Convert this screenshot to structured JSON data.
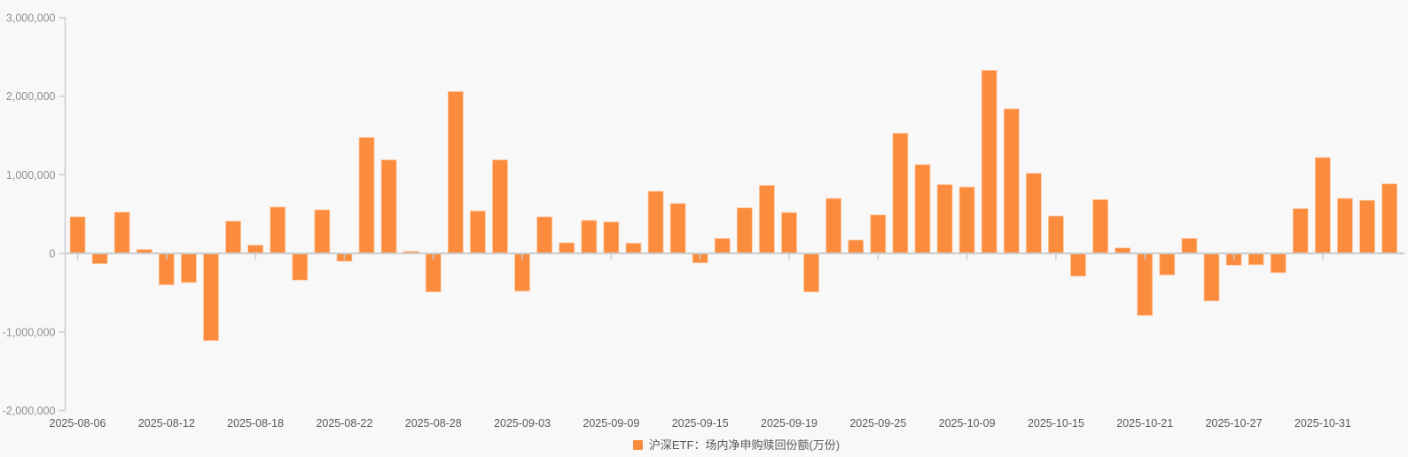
{
  "chart": {
    "background_color": "#f8f8f8",
    "bar_color": "#fb8b3d",
    "bar_stroke_color": "#fec9a2",
    "axis_line_color": "#cccccc",
    "zero_line_color": "#cccccc",
    "tick_color": "#cccccc",
    "y_label_color": "#8f8f8f",
    "x_label_color": "#595959",
    "legend": {
      "label": "沪深ETF：场内净申购赎回份额(万份)",
      "text_color": "#595959"
    }
  },
  "chart_data": {
    "type": "bar",
    "title": "",
    "xlabel": "",
    "ylabel": "",
    "series_name": "沪深ETF：场内净申购赎回份额(万份)",
    "legend_position": "bottom-center",
    "grid": false,
    "ylim": [
      -2000000,
      3000000
    ],
    "y_ticks": [
      3000000,
      2000000,
      1000000,
      0,
      -1000000,
      -2000000
    ],
    "y_tick_labels": [
      "3,000,000",
      "2,000,000",
      "1,000,000",
      "0",
      "-1,000,000",
      "-2,000,000"
    ],
    "x_tick_indices": [
      0,
      4,
      8,
      12,
      16,
      20,
      24,
      28,
      32,
      36,
      40,
      44,
      48,
      52,
      56
    ],
    "x_tick_labels": [
      "2025-08-06",
      "2025-08-12",
      "2025-08-18",
      "2025-08-22",
      "2025-08-28",
      "2025-09-03",
      "2025-09-09",
      "2025-09-15",
      "2025-09-19",
      "2025-09-25",
      "2025-10-09",
      "2025-10-15",
      "2025-10-21",
      "2025-10-27",
      "2025-10-31"
    ],
    "categories": [
      "2025-08-06",
      "2025-08-07",
      "2025-08-08",
      "2025-08-11",
      "2025-08-12",
      "2025-08-13",
      "2025-08-14",
      "2025-08-15",
      "2025-08-18",
      "2025-08-19",
      "2025-08-20",
      "2025-08-21",
      "2025-08-22",
      "2025-08-25",
      "2025-08-26",
      "2025-08-27",
      "2025-08-28",
      "2025-08-29",
      "2025-09-01",
      "2025-09-02",
      "2025-09-03",
      "2025-09-04",
      "2025-09-05",
      "2025-09-08",
      "2025-09-09",
      "2025-09-10",
      "2025-09-11",
      "2025-09-12",
      "2025-09-15",
      "2025-09-16",
      "2025-09-17",
      "2025-09-18",
      "2025-09-19",
      "2025-09-22",
      "2025-09-23",
      "2025-09-24",
      "2025-09-25",
      "2025-09-26",
      "2025-09-29",
      "2025-09-30",
      "2025-10-09",
      "2025-10-10",
      "2025-10-13",
      "2025-10-14",
      "2025-10-15",
      "2025-10-16",
      "2025-10-17",
      "2025-10-20",
      "2025-10-21",
      "2025-10-22",
      "2025-10-23",
      "2025-10-24",
      "2025-10-27",
      "2025-10-28",
      "2025-10-29",
      "2025-10-30",
      "2025-10-31",
      "2025-11-03",
      "2025-11-04",
      "2025-11-05"
    ],
    "values": [
      465000,
      -130000,
      525000,
      50000,
      -400000,
      -370000,
      -1110000,
      410000,
      105000,
      590000,
      -340000,
      555000,
      -100000,
      1475000,
      1190000,
      25000,
      -490000,
      2060000,
      540000,
      1190000,
      -480000,
      465000,
      135000,
      420000,
      400000,
      130000,
      790000,
      635000,
      -120000,
      190000,
      580000,
      865000,
      520000,
      -490000,
      700000,
      170000,
      490000,
      1530000,
      1130000,
      875000,
      845000,
      2330000,
      1840000,
      1020000,
      475000,
      -290000,
      685000,
      70000,
      -790000,
      -275000,
      190000,
      -605000,
      -150000,
      -145000,
      -245000,
      570000,
      1220000,
      700000,
      675000,
      885000
    ]
  }
}
